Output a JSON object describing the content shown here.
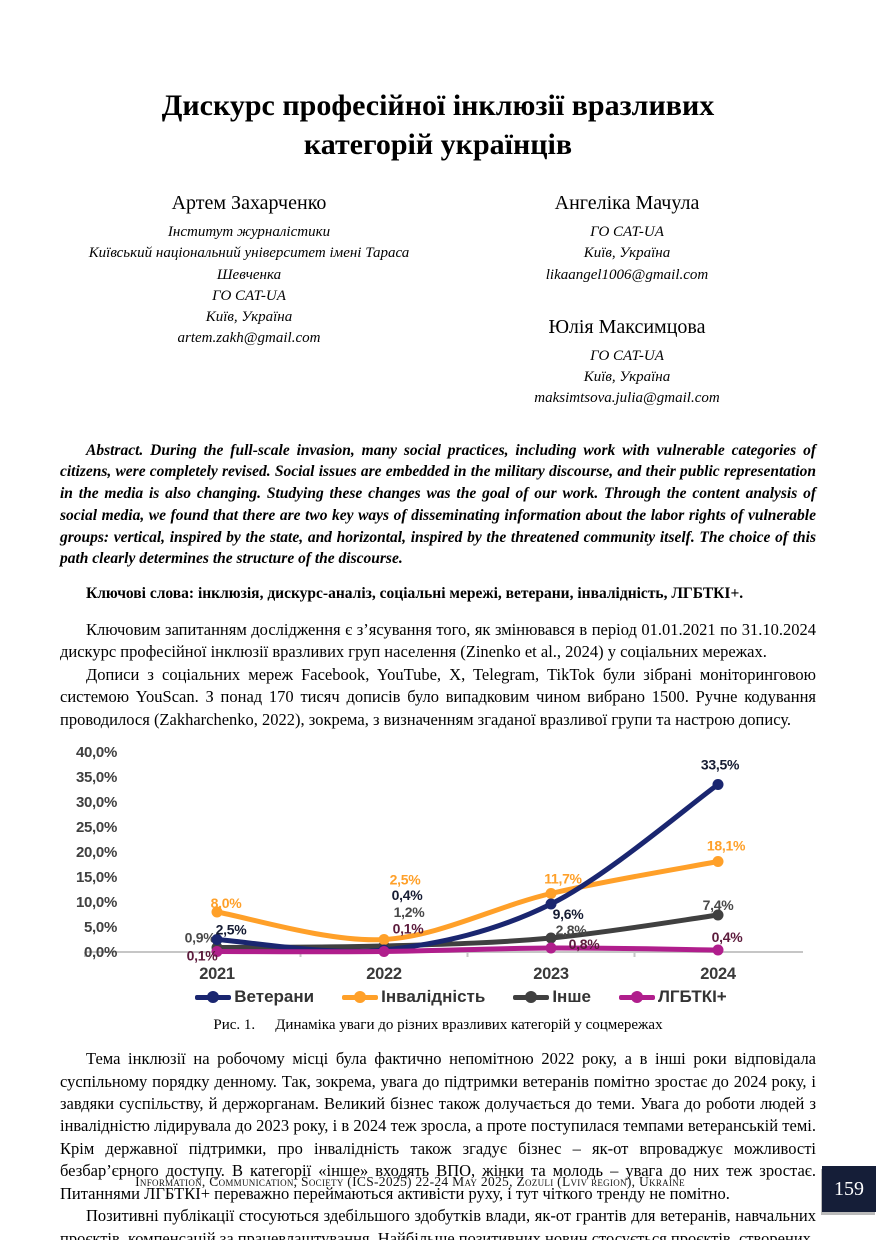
{
  "page": {
    "title": "Дискурс професійної інклюзії вразливих категорій українців",
    "footer": "Information, Communication, Society (ICS-2025) 22-24 May 2025, Zozuli (Lviv region), Ukraine",
    "page_number": "159"
  },
  "authors": [
    {
      "name": "Артем Захарченко",
      "affiliation_lines": [
        "Інститут журналістики",
        "Київський національний університет імені Тараса Шевченка",
        "ГО CAT-UA",
        "Київ, Україна",
        "artem.zakh@gmail.com"
      ]
    },
    {
      "name": "Ангеліка Мачула",
      "affiliation_lines": [
        "ГО CAT-UA",
        "Київ, Україна",
        "likaangel1006@gmail.com"
      ]
    },
    {
      "name": "Юлія Максимцова",
      "affiliation_lines": [
        "ГО CAT-UA",
        "Київ, Україна",
        "maksimtsova.julia@gmail.com"
      ]
    }
  ],
  "abstract": "Abstract. During the full-scale invasion, many social practices, including work with vulnerable categories of citizens, were completely revised. Social issues are embedded in the military discourse, and their public representation in the media is also changing. Studying these changes was the goal of our work. Through the content analysis of social media, we found that there are two key ways of disseminating information about the labor rights of vulnerable groups: vertical, inspired by the state, and horizontal, inspired by the threatened community itself. The choice of this path clearly determines the structure of the discourse.",
  "keywords": "Ключові слова: інклюзія, дискурс-аналіз, соціальні мережі, ветерани, інвалідність, ЛГБТКІ+.",
  "paragraphs_before_figure": [
    "Ключовим запитанням дослідження є з’ясування того, як змінювався в період 01.01.2021 по 31.10.2024 дискурс професійної інклюзії вразливих груп населення (Zinenko et al., 2024) у соціальних мережах.",
    "Дописи з соціальних мереж Facebook, YouTube, X, Telegram, TikTok були зібрані моніторинговою системою YouScan. З понад 170 тисяч дописів було випадковим чином вибрано 1500. Ручне кодування проводилося (Zakharchenko, 2022), зокрема, з визначенням згаданої вразливої групи та настрою допису."
  ],
  "figure": {
    "caption_label": "Рис. 1.",
    "caption_text": "Динаміка уваги до різних вразливих категорій у соцмережах"
  },
  "paragraphs_after_figure": [
    "Тема інклюзії на робочому місці була фактично непомітною 2022 року, а в інші роки відповідала суспільному порядку денному. Так, зокрема, увага до підтримки ветеранів помітно зростає до 2024 року, і завдяки суспільству, й держорганам. Великий бізнес також долучається до теми. Увага до роботи людей з інвалідністю лідирувала до 2023 року, і в 2024 теж зросла, а проте поступилася темпами ветеранській темі. Крім державної підтримки, про інвалідність також згадує бізнес – як-от впроваджує можливості безбар’єрного доступу. В категорії «інше» входять ВПО, жінки та молодь – увага до них теж зростає. Питаннями ЛГБТКІ+ переважно переймаються активісти руху, і тут чіткого тренду не помітно.",
    "Позитивні публікації стосуються здебільшого здобутків влади, як-от грантів для ветеранів, навчальних проєктів, компенсацій за працевлаштування. Найбільше позитивних новин стосується проєктів, створених"
  ],
  "chart_data": {
    "type": "line",
    "categories": [
      "2021",
      "2022",
      "2023",
      "2024"
    ],
    "series": [
      {
        "name": "Інше",
        "color": "#404040",
        "values": [
          0.9,
          1.2,
          2.8,
          7.4
        ],
        "labels": [
          "0,9%",
          "1,2%",
          "2,8%",
          "7,4%"
        ],
        "label_color": "#4A4A4A",
        "label_offsets": [
          [
            -17,
            -5
          ],
          [
            25,
            -29
          ],
          [
            20,
            -3
          ],
          [
            0,
            -5
          ]
        ]
      },
      {
        "name": "Інвалідність",
        "color": "#FFA029",
        "values": [
          8.0,
          2.5,
          11.7,
          18.1
        ],
        "labels": [
          "8,0%",
          "2,5%",
          "11,7%",
          "18,1%"
        ],
        "label_color": "#FFA029",
        "label_offsets": [
          [
            9,
            -4
          ],
          [
            21,
            -55
          ],
          [
            12,
            -10
          ],
          [
            8,
            -11
          ]
        ]
      },
      {
        "name": "Ветерани",
        "color": "#1A2670",
        "values": [
          2.5,
          0.4,
          9.6,
          33.5
        ],
        "labels": [
          "2,5%",
          "0,4%",
          "9,6%",
          "33,5%"
        ],
        "label_color": "#161C33",
        "label_offsets": [
          [
            14,
            -5
          ],
          [
            23,
            -50
          ],
          [
            17,
            15
          ],
          [
            2,
            -15
          ]
        ]
      },
      {
        "name": "ЛГБТКІ+",
        "color": "#B01E8C",
        "values": [
          0.1,
          0.1,
          0.8,
          0.4
        ],
        "labels": [
          "0,1%",
          "0,1%",
          "0,8%",
          "0,4%"
        ],
        "label_color": "#5C1B3C",
        "label_offsets": [
          [
            -15,
            9
          ],
          [
            24,
            -18
          ],
          [
            33,
            1
          ],
          [
            9,
            -8
          ]
        ]
      }
    ],
    "legend_order": [
      "Ветерани",
      "Інвалідність",
      "Інше",
      "ЛГБТКІ+"
    ],
    "title": "",
    "xlabel": "",
    "ylabel": "",
    "ylim": [
      0,
      40
    ],
    "ytick_step": 5,
    "ytick_labels": [
      "0,0%",
      "5,0%",
      "10,0%",
      "15,0%",
      "20,0%",
      "25,0%",
      "30,0%",
      "35,0%",
      "40,0%"
    ],
    "grid": false,
    "legend_position": "bottom",
    "axis_color": "#C6C6C6",
    "tick_label_color": "#404040",
    "xtick_label_color": "#3A3A3A"
  }
}
